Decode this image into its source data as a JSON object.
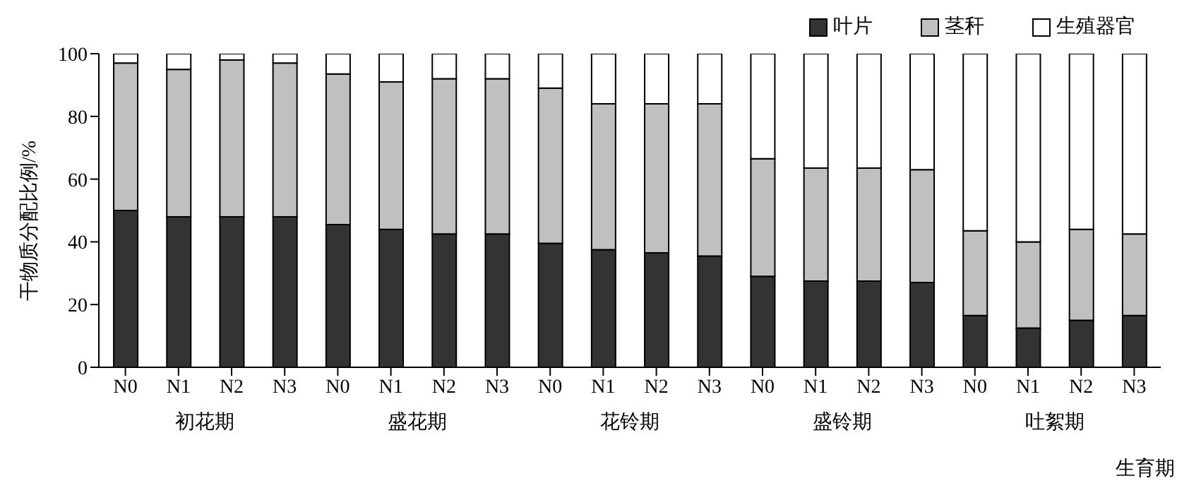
{
  "chart_data": {
    "type": "bar",
    "stacked": true,
    "xlabel": "生育期",
    "ylabel": "干物质分配比例/%",
    "categories": [
      "N0",
      "N1",
      "N2",
      "N3",
      "N0",
      "N1",
      "N2",
      "N3",
      "N0",
      "N1",
      "N2",
      "N3",
      "N0",
      "N1",
      "N2",
      "N3",
      "N0",
      "N1",
      "N2",
      "N3"
    ],
    "annotations": [
      "初花期",
      "盛花期",
      "花铃期",
      "盛铃期",
      "吐絮期"
    ],
    "series": [
      {
        "name": "叶片",
        "color": "#333333",
        "values": [
          50,
          48,
          48,
          48,
          45.5,
          44,
          42.5,
          42.5,
          39.5,
          37.5,
          36.5,
          35.5,
          29,
          27.5,
          27.5,
          27,
          16.5,
          12.5,
          15,
          16.5
        ]
      },
      {
        "name": "茎秆",
        "color": "#c0c0c0",
        "values": [
          47,
          47,
          50,
          49,
          48,
          47,
          49.5,
          49.5,
          49.5,
          46.5,
          47.5,
          48.5,
          37.5,
          36,
          36,
          36,
          27,
          27.5,
          29,
          26
        ]
      },
      {
        "name": "生殖器官",
        "color": "#ffffff",
        "values": [
          3,
          5,
          2,
          3,
          6.5,
          9,
          8,
          8,
          11,
          16,
          16,
          16,
          33.5,
          36.5,
          36.5,
          37,
          56.5,
          60,
          56,
          57.5
        ]
      }
    ],
    "ylim": [
      0,
      100
    ],
    "yticks": [
      0,
      20,
      40,
      60,
      80,
      100
    ],
    "grid": false,
    "legend": "top right"
  }
}
